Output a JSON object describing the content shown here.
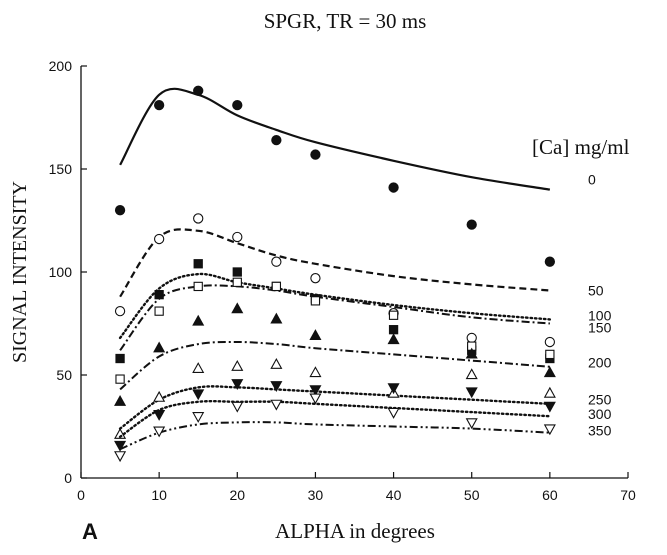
{
  "chart_data": {
    "type": "scatter",
    "title": "SPGR, TR = 30 ms",
    "xlabel": "ALPHA in degrees",
    "ylabel": "SIGNAL INTENSITY",
    "panel_label": "A",
    "legend_title": "[Ca] mg/ml",
    "xlim": [
      0,
      70
    ],
    "ylim": [
      0,
      200
    ],
    "xticks": [
      0,
      10,
      20,
      30,
      40,
      50,
      60,
      70
    ],
    "yticks": [
      0,
      50,
      100,
      150,
      200
    ],
    "grid": false,
    "series": [
      {
        "name": "0",
        "marker": "filled-circle",
        "line": "solid",
        "x": [
          5,
          10,
          15,
          20,
          25,
          30,
          40,
          50,
          60
        ],
        "points": [
          130,
          181,
          188,
          181,
          164,
          157,
          141,
          123,
          105
        ],
        "fit": [
          152,
          186,
          186,
          176,
          169,
          163,
          154,
          146,
          140
        ]
      },
      {
        "name": "50",
        "marker": "open-circle",
        "line": "dashed",
        "x": [
          5,
          10,
          15,
          20,
          25,
          30,
          40,
          50,
          60
        ],
        "points": [
          81,
          116,
          126,
          117,
          105,
          97,
          80,
          68,
          66
        ],
        "fit": [
          88,
          117,
          120,
          114,
          108,
          104,
          98,
          94,
          91
        ]
      },
      {
        "name": "100",
        "marker": "filled-square",
        "line": "dotted",
        "x": [
          5,
          10,
          15,
          20,
          25,
          30,
          40,
          50,
          60
        ],
        "points": [
          58,
          89,
          104,
          100,
          93,
          87,
          72,
          62,
          58
        ],
        "fit": [
          68,
          92,
          99,
          95,
          92,
          89,
          84,
          80,
          77
        ]
      },
      {
        "name": "150",
        "marker": "open-square",
        "line": "dash-dot",
        "x": [
          5,
          10,
          15,
          20,
          25,
          30,
          40,
          50,
          60
        ],
        "points": [
          48,
          81,
          93,
          95,
          93,
          86,
          79,
          64,
          60
        ],
        "fit": [
          62,
          87,
          93,
          93,
          91,
          88,
          83,
          78,
          75
        ]
      },
      {
        "name": "200",
        "marker": "filled-triangle",
        "line": "dash-dot",
        "x": [
          5,
          10,
          15,
          20,
          25,
          30,
          40,
          50,
          60
        ],
        "points": [
          37,
          63,
          76,
          82,
          77,
          69,
          67,
          60,
          51
        ],
        "fit": [
          43,
          59,
          65,
          66,
          65,
          63,
          60,
          57,
          54
        ]
      },
      {
        "name": "250",
        "marker": "open-triangle",
        "line": "dotted",
        "x": [
          5,
          10,
          15,
          20,
          25,
          30,
          40,
          50,
          60
        ],
        "points": [
          21,
          39,
          53,
          54,
          55,
          51,
          41,
          50,
          41
        ],
        "fit": [
          24,
          38,
          44,
          44,
          43,
          42,
          40,
          38,
          36
        ]
      },
      {
        "name": "300",
        "marker": "filled-inverted-triangle",
        "line": "dotted",
        "x": [
          5,
          10,
          15,
          20,
          25,
          30,
          40,
          50,
          60
        ],
        "points": [
          16,
          31,
          41,
          46,
          45,
          43,
          44,
          42,
          35
        ],
        "fit": [
          20,
          33,
          37,
          37,
          37,
          36,
          34,
          32,
          30
        ]
      },
      {
        "name": "350",
        "marker": "open-inverted-triangle",
        "line": "dash-dot-dot",
        "x": [
          5,
          10,
          15,
          20,
          25,
          30,
          40,
          50,
          60
        ],
        "points": [
          11,
          23,
          30,
          35,
          36,
          39,
          32,
          27,
          24
        ],
        "fit": [
          14,
          22,
          26,
          27,
          27,
          26,
          25,
          24,
          22
        ]
      }
    ]
  }
}
